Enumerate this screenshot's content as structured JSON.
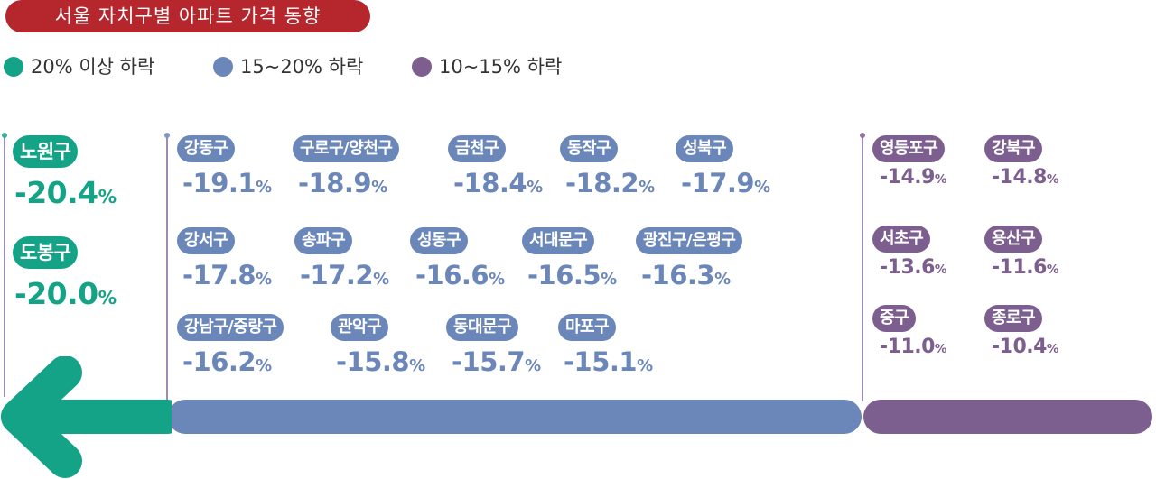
{
  "title": "서울 자치구별 아파트 가격 동향",
  "colors": {
    "title_bg": "#b5262d",
    "group1": "#14a387",
    "group2": "#6b86b8",
    "group3": "#7d5f8f"
  },
  "legend": [
    {
      "label": "20% 이상 하락",
      "color": "#14a387"
    },
    {
      "label": "15~20% 하락",
      "color": "#6b86b8"
    },
    {
      "label": "10~15% 하락",
      "color": "#7d5f8f"
    }
  ],
  "chart_data": {
    "type": "table",
    "title": "서울 자치구별 아파트 가격 동향",
    "unit": "%",
    "groups": [
      {
        "name": "20% 이상 하락",
        "districts": [
          {
            "name": "노원구",
            "value": "-20.4"
          },
          {
            "name": "도봉구",
            "value": "-20.0"
          }
        ]
      },
      {
        "name": "15~20% 하락",
        "districts": [
          {
            "name": "강동구",
            "value": "-19.1"
          },
          {
            "name": "구로구/양천구",
            "value": "-18.9"
          },
          {
            "name": "금천구",
            "value": "-18.4"
          },
          {
            "name": "동작구",
            "value": "-18.2"
          },
          {
            "name": "성북구",
            "value": "-17.9"
          },
          {
            "name": "강서구",
            "value": "-17.8"
          },
          {
            "name": "송파구",
            "value": "-17.2"
          },
          {
            "name": "성동구",
            "value": "-16.6"
          },
          {
            "name": "서대문구",
            "value": "-16.5"
          },
          {
            "name": "광진구/은평구",
            "value": "-16.3"
          },
          {
            "name": "강남구/중랑구",
            "value": "-16.2"
          },
          {
            "name": "관악구",
            "value": "-15.8"
          },
          {
            "name": "동대문구",
            "value": "-15.7"
          },
          {
            "name": "마포구",
            "value": "-15.1"
          }
        ]
      },
      {
        "name": "10~15% 하락",
        "districts": [
          {
            "name": "영등포구",
            "value": "-14.9"
          },
          {
            "name": "강북구",
            "value": "-14.8"
          },
          {
            "name": "서초구",
            "value": "-13.6"
          },
          {
            "name": "용산구",
            "value": "-11.6"
          },
          {
            "name": "중구",
            "value": "-11.0"
          },
          {
            "name": "종로구",
            "value": "-10.4"
          }
        ]
      }
    ]
  }
}
